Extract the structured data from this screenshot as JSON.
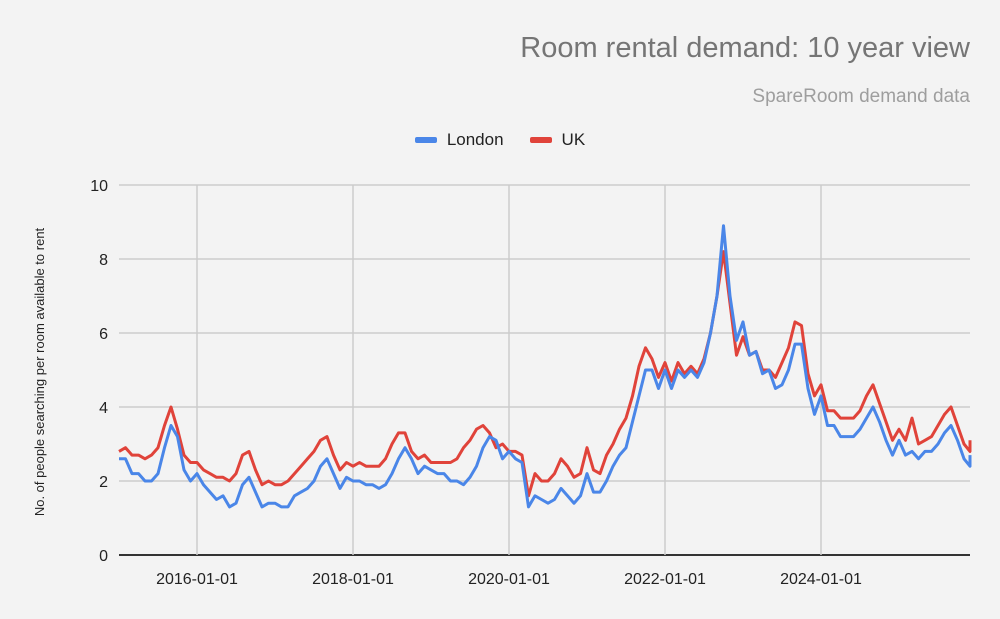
{
  "header": {
    "title": "Room rental demand: 10 year view",
    "subtitle": "SpareRoom demand data"
  },
  "legend": [
    {
      "label": "London",
      "color": "#4a86e8"
    },
    {
      "label": "UK",
      "color": "#e0433a"
    }
  ],
  "axes": {
    "ylabel": "No. of people searching per room available to rent",
    "yticks": [
      "0",
      "2",
      "4",
      "6",
      "8",
      "10"
    ],
    "xticks": [
      "2016-01-01",
      "2018-01-01",
      "2020-01-01",
      "2022-01-01",
      "2024-01-01"
    ]
  },
  "chart_data": {
    "type": "line",
    "title": "Room rental demand: 10 year view",
    "subtitle": "SpareRoom demand data",
    "xlabel": "",
    "ylabel": "No. of people searching per room available to rent",
    "ylim": [
      0,
      10
    ],
    "grid": true,
    "legend_position": "top",
    "x_start": "2015-01",
    "x_interval": "monthly",
    "xticks": [
      "2016-01-01",
      "2018-01-01",
      "2020-01-01",
      "2022-01-01",
      "2024-01-01"
    ],
    "series": [
      {
        "name": "London",
        "color": "#4a86e8",
        "values": [
          2.6,
          2.6,
          2.2,
          2.2,
          2.0,
          2.0,
          2.2,
          2.9,
          3.5,
          3.2,
          2.3,
          2.0,
          2.2,
          1.9,
          1.7,
          1.5,
          1.6,
          1.3,
          1.4,
          1.9,
          2.1,
          1.7,
          1.3,
          1.4,
          1.4,
          1.3,
          1.3,
          1.6,
          1.7,
          1.8,
          2.0,
          2.4,
          2.6,
          2.2,
          1.8,
          2.1,
          2.0,
          2.0,
          1.9,
          1.9,
          1.8,
          1.9,
          2.2,
          2.6,
          2.9,
          2.6,
          2.2,
          2.4,
          2.3,
          2.2,
          2.2,
          2.0,
          2.0,
          1.9,
          2.1,
          2.4,
          2.9,
          3.2,
          3.1,
          2.6,
          2.8,
          2.6,
          2.5,
          1.3,
          1.6,
          1.5,
          1.4,
          1.5,
          1.8,
          1.6,
          1.4,
          1.6,
          2.2,
          1.7,
          1.7,
          2.0,
          2.4,
          2.7,
          2.9,
          3.6,
          4.3,
          5.0,
          5.0,
          4.5,
          5.0,
          4.5,
          5.0,
          4.8,
          5.0,
          4.8,
          5.2,
          6.0,
          7.0,
          8.9,
          7.0,
          5.8,
          6.3,
          5.4,
          5.5,
          4.9,
          5.0,
          4.5,
          4.6,
          5.0,
          5.7,
          5.7,
          4.5,
          3.8,
          4.3,
          3.5,
          3.5,
          3.2,
          3.2,
          3.2,
          3.4,
          3.7,
          4.0,
          3.6,
          3.1,
          2.7,
          3.1,
          2.7,
          2.8,
          2.6,
          2.8,
          2.8,
          3.0,
          3.3,
          3.5,
          3.1,
          2.6,
          2.4,
          2.7
        ]
      },
      {
        "name": "UK",
        "color": "#e0433a",
        "values": [
          2.8,
          2.9,
          2.7,
          2.7,
          2.6,
          2.7,
          2.9,
          3.5,
          4.0,
          3.4,
          2.7,
          2.5,
          2.5,
          2.3,
          2.2,
          2.1,
          2.1,
          2.0,
          2.2,
          2.7,
          2.8,
          2.3,
          1.9,
          2.0,
          1.9,
          1.9,
          2.0,
          2.2,
          2.4,
          2.6,
          2.8,
          3.1,
          3.2,
          2.7,
          2.3,
          2.5,
          2.4,
          2.5,
          2.4,
          2.4,
          2.4,
          2.6,
          3.0,
          3.3,
          3.3,
          2.8,
          2.6,
          2.7,
          2.5,
          2.5,
          2.5,
          2.5,
          2.6,
          2.9,
          3.1,
          3.4,
          3.5,
          3.3,
          2.9,
          3.0,
          2.8,
          2.8,
          2.7,
          1.6,
          2.2,
          2.0,
          2.0,
          2.2,
          2.6,
          2.4,
          2.1,
          2.2,
          2.9,
          2.3,
          2.2,
          2.7,
          3.0,
          3.4,
          3.7,
          4.3,
          5.1,
          5.6,
          5.3,
          4.8,
          5.2,
          4.7,
          5.2,
          4.9,
          5.1,
          4.9,
          5.3,
          6.0,
          7.0,
          8.2,
          6.8,
          5.4,
          5.9,
          5.4,
          5.5,
          5.0,
          5.0,
          4.8,
          5.2,
          5.6,
          6.3,
          6.2,
          4.9,
          4.3,
          4.6,
          3.9,
          3.9,
          3.7,
          3.7,
          3.7,
          3.9,
          4.3,
          4.6,
          4.1,
          3.6,
          3.1,
          3.4,
          3.1,
          3.7,
          3.0,
          3.1,
          3.2,
          3.5,
          3.8,
          4.0,
          3.5,
          3.0,
          2.8,
          3.1
        ]
      }
    ]
  }
}
